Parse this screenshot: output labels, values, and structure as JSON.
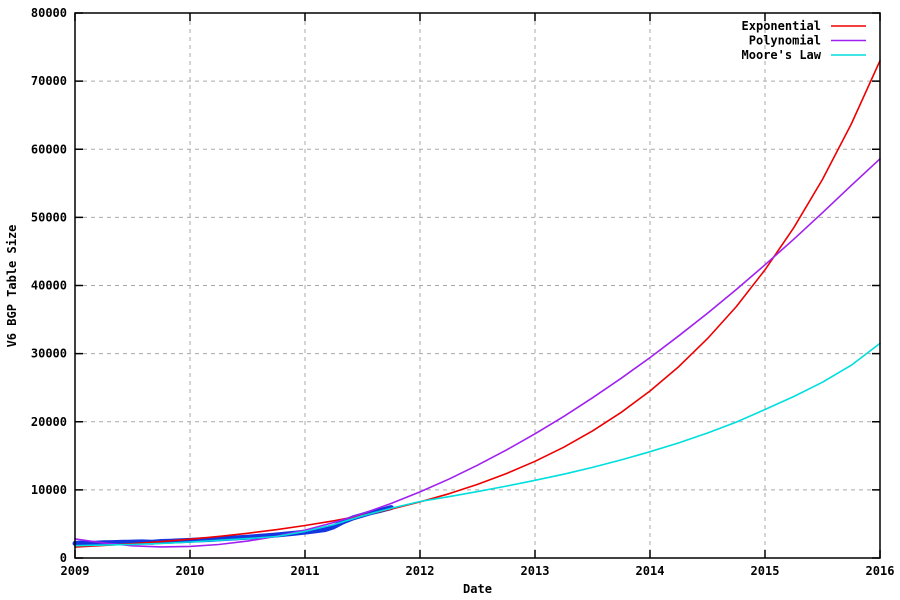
{
  "chart_data": {
    "type": "line",
    "title": "",
    "xlabel": "Date",
    "ylabel": "V6 BGP Table Size",
    "xlim": [
      2009,
      2016
    ],
    "ylim": [
      0,
      80000
    ],
    "xticks": [
      2009,
      2010,
      2011,
      2012,
      2013,
      2014,
      2015,
      2016
    ],
    "yticks": [
      0,
      10000,
      20000,
      30000,
      40000,
      50000,
      60000,
      70000,
      80000
    ],
    "grid": true,
    "grid_color": "#aaaaaa",
    "grid_dash": "4 4",
    "border_color": "#000000",
    "background": "#ffffff",
    "legend_position": "top-right",
    "series": [
      {
        "name": "measured-data",
        "legend": null,
        "color": "#1535e0",
        "width": 5,
        "x": [
          2009.0,
          2009.08,
          2009.17,
          2009.25,
          2009.33,
          2009.42,
          2009.5,
          2009.58,
          2009.67,
          2009.75,
          2009.83,
          2009.92,
          2010.0,
          2010.08,
          2010.17,
          2010.25,
          2010.33,
          2010.42,
          2010.5,
          2010.58,
          2010.67,
          2010.75,
          2010.83,
          2010.92,
          2011.0,
          2011.08,
          2011.17,
          2011.25,
          2011.33,
          2011.42,
          2011.5,
          2011.58,
          2011.67,
          2011.75
        ],
        "y": [
          2150,
          2180,
          2160,
          2230,
          2260,
          2300,
          2340,
          2370,
          2300,
          2420,
          2470,
          2520,
          2580,
          2650,
          2720,
          2800,
          2880,
          2960,
          3050,
          3150,
          3260,
          3380,
          3510,
          3650,
          3800,
          3960,
          4150,
          4600,
          5300,
          5900,
          6300,
          6700,
          7050,
          7400
        ]
      },
      {
        "name": "exponential-fit",
        "legend": "Exponential",
        "color": "#ee0000",
        "width": 1.6,
        "x": [
          2009.0,
          2009.25,
          2009.5,
          2009.75,
          2010.0,
          2010.25,
          2010.5,
          2010.75,
          2011.0,
          2011.25,
          2011.5,
          2011.75,
          2012.0,
          2012.25,
          2012.5,
          2012.75,
          2013.0,
          2013.25,
          2013.5,
          2013.75,
          2014.0,
          2014.25,
          2014.5,
          2014.75,
          2015.0,
          2015.25,
          2015.5,
          2015.75,
          2016.0
        ],
        "y": [
          1600,
          1830,
          2100,
          2410,
          2760,
          3170,
          3630,
          4160,
          4770,
          5460,
          6260,
          7180,
          8230,
          9430,
          10810,
          12390,
          14200,
          16270,
          18650,
          21380,
          24510,
          28090,
          32200,
          36900,
          42300,
          48480,
          55570,
          63700,
          73000
        ]
      },
      {
        "name": "polynomial-fit",
        "legend": "Polynomial",
        "color": "#a020f0",
        "width": 1.6,
        "x": [
          2009.0,
          2009.25,
          2009.5,
          2009.75,
          2010.0,
          2010.25,
          2010.5,
          2010.75,
          2011.0,
          2011.25,
          2011.5,
          2011.75,
          2012.0,
          2012.25,
          2012.5,
          2012.75,
          2013.0,
          2013.25,
          2013.5,
          2013.75,
          2014.0,
          2014.25,
          2014.5,
          2014.75,
          2015.0,
          2015.25,
          2015.5,
          2015.75,
          2016.0
        ],
        "y": [
          2800,
          2180,
          1790,
          1630,
          1700,
          1980,
          2480,
          3180,
          4090,
          5210,
          6510,
          8010,
          9700,
          11570,
          13620,
          15840,
          18230,
          20790,
          23510,
          26390,
          29420,
          32610,
          35940,
          39420,
          43040,
          46790,
          50680,
          54700,
          58600
        ]
      },
      {
        "name": "moores-law-fit",
        "legend": "Moore's Law",
        "color": "#00dede",
        "width": 1.6,
        "x": [
          2009.0,
          2009.25,
          2009.5,
          2009.75,
          2010.0,
          2010.25,
          2010.5,
          2010.75,
          2011.0,
          2011.25,
          2011.5,
          2011.75,
          2012.0,
          2012.25,
          2012.5,
          2012.75,
          2013.0,
          2013.25,
          2013.5,
          2013.75,
          2014.0,
          2014.25,
          2014.5,
          2014.75,
          2015.0,
          2015.25,
          2015.5,
          2015.75,
          2016.0
        ],
        "y": [
          1800,
          1900,
          2000,
          2150,
          2350,
          2600,
          2850,
          3150,
          3900,
          4900,
          6200,
          7300,
          8300,
          9000,
          9750,
          10550,
          11400,
          12300,
          13300,
          14400,
          15600,
          16900,
          18350,
          19950,
          21800,
          23700,
          25800,
          28300,
          31500
        ]
      }
    ]
  }
}
